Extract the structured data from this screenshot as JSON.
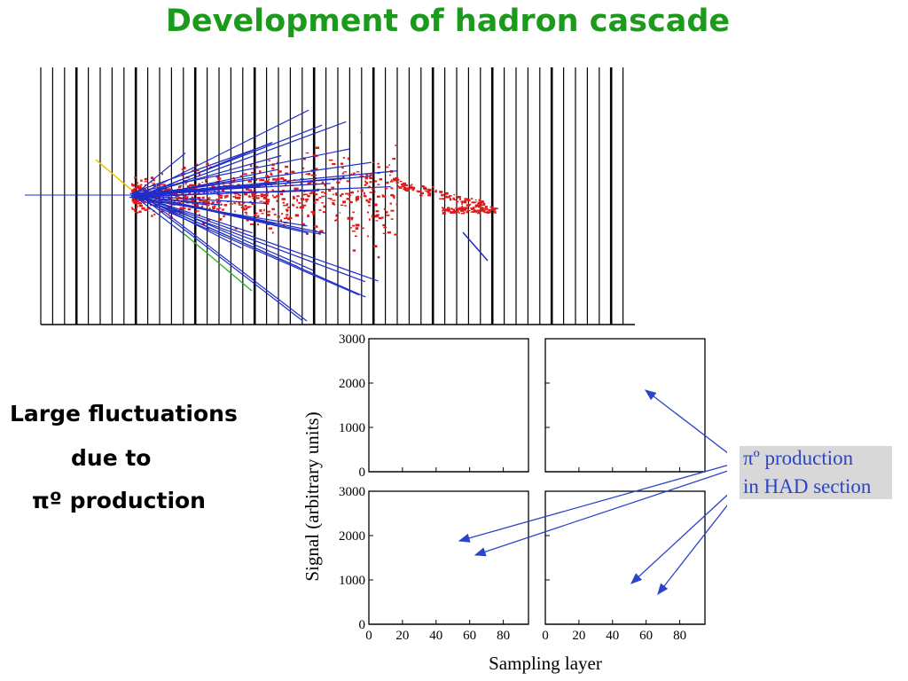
{
  "title": "Development of hadron cascade",
  "side_text": {
    "line1": "Large fluctuations",
    "line2": "due to",
    "line3": "πº production"
  },
  "annotation": {
    "line1": "πº production",
    "line2": "in HAD section"
  },
  "colors": {
    "title": "#1c9a1c",
    "em_shower": "#e01818",
    "hadron_tracks": "#1e2dc8",
    "annotation": "#2b44c8",
    "annotation_bg": "#d8d8d8"
  },
  "chart_data": {
    "type": "line",
    "style": "step histogram, 2x2 panels",
    "xlabel": "Sampling layer",
    "ylabel": "Signal (arbitrary units)",
    "xlim": [
      0,
      95
    ],
    "ylim": [
      0,
      3000
    ],
    "xticks": [
      0,
      20,
      40,
      60,
      80
    ],
    "yticks": [
      0,
      1000,
      2000,
      3000
    ],
    "x": [
      0,
      2,
      4,
      6,
      8,
      10,
      12,
      14,
      16,
      18,
      20,
      22,
      24,
      26,
      28,
      30,
      32,
      34,
      36,
      38,
      40,
      42,
      44,
      46,
      48,
      50,
      52,
      54,
      56,
      58,
      60,
      62,
      64,
      66,
      68,
      70,
      72,
      74,
      76,
      78,
      80,
      82,
      84,
      86,
      88,
      90,
      92,
      94
    ],
    "series": [
      {
        "panel": "top-left",
        "values": [
          0,
          0,
          0,
          0,
          0,
          0,
          0,
          0,
          0,
          0,
          0,
          0,
          0,
          0,
          0,
          0,
          0,
          0,
          0,
          0,
          0,
          0,
          0,
          0,
          0,
          0,
          0,
          0,
          0,
          0,
          0,
          0,
          0,
          0,
          0,
          0,
          0,
          0,
          0,
          0,
          0,
          0,
          0,
          0,
          0,
          0,
          0,
          0
        ]
      },
      {
        "panel": "top-right",
        "values": [
          0,
          0,
          0,
          0,
          0,
          0,
          0,
          0,
          0,
          0,
          0,
          0,
          0,
          0,
          0,
          0,
          0,
          0,
          0,
          0,
          0,
          0,
          0,
          0,
          0,
          0,
          0,
          0,
          0,
          0,
          0,
          0,
          0,
          0,
          0,
          0,
          0,
          0,
          0,
          0,
          0,
          0,
          0,
          0,
          0,
          0,
          0,
          0
        ]
      },
      {
        "panel": "bottom-left",
        "values": [
          0,
          0,
          0,
          0,
          0,
          0,
          0,
          0,
          0,
          0,
          0,
          0,
          0,
          0,
          0,
          0,
          0,
          0,
          0,
          0,
          0,
          0,
          0,
          0,
          0,
          0,
          0,
          0,
          0,
          0,
          0,
          0,
          0,
          0,
          0,
          0,
          0,
          0,
          0,
          0,
          0,
          0,
          0,
          0,
          0,
          0,
          0,
          0
        ]
      },
      {
        "panel": "bottom-right",
        "values": [
          0,
          0,
          0,
          0,
          0,
          0,
          0,
          0,
          0,
          0,
          0,
          0,
          0,
          0,
          0,
          0,
          0,
          0,
          0,
          0,
          0,
          0,
          0,
          0,
          0,
          0,
          0,
          0,
          0,
          0,
          0,
          0,
          0,
          0,
          0,
          0,
          0,
          0,
          0,
          0,
          0,
          0,
          0,
          0,
          0,
          0,
          0,
          0
        ]
      }
    ]
  }
}
